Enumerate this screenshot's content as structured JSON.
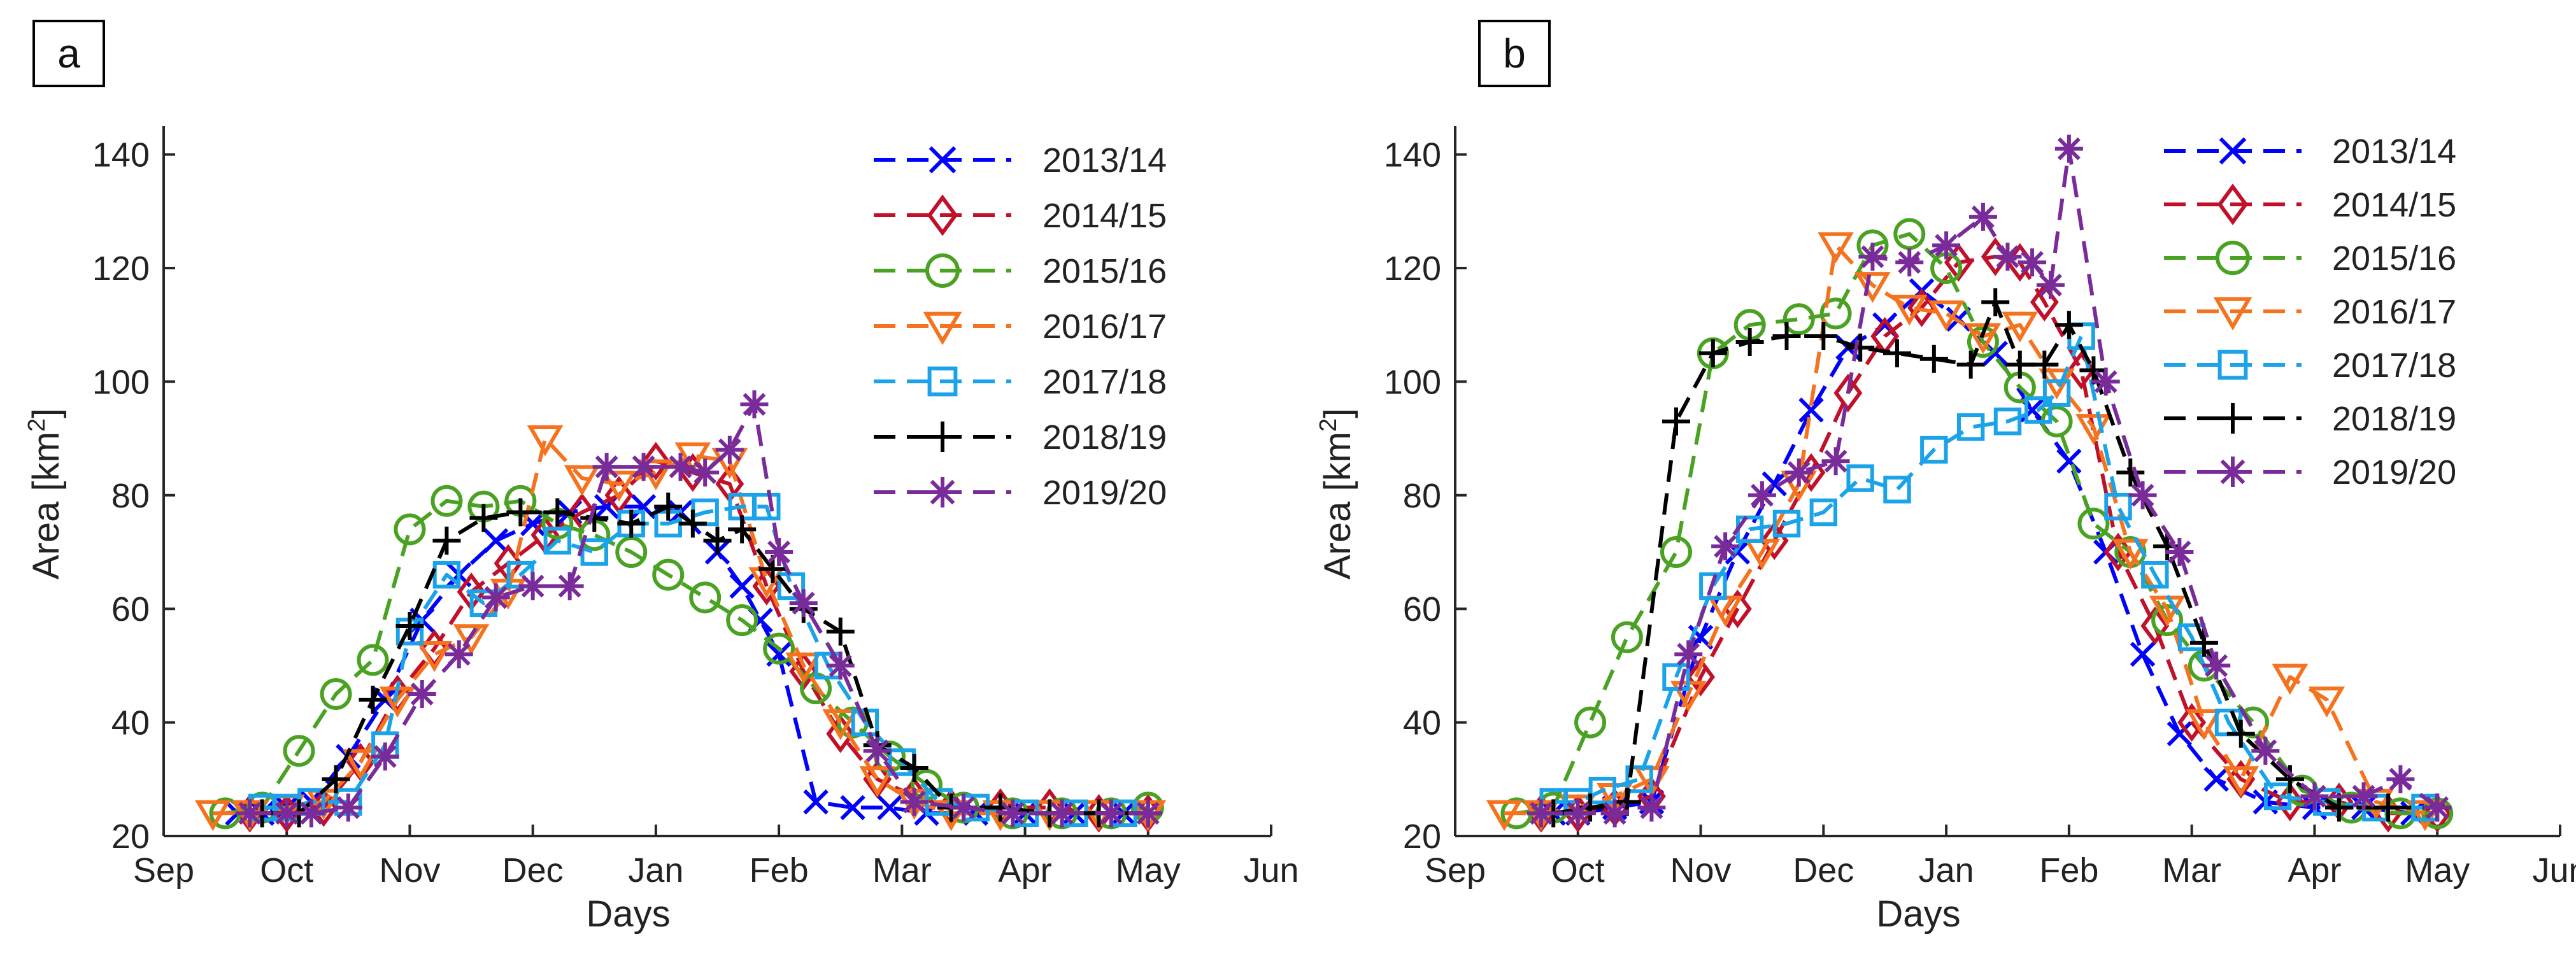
{
  "chart_data": [
    {
      "type": "line",
      "panel_label": "a",
      "xlabel": "Days",
      "ylabel": "Area [km",
      "ylabel_sup": "2",
      "ylabel_end": "]",
      "xlim": [
        0,
        9
      ],
      "ylim": [
        20,
        145
      ],
      "xticks": [
        0,
        1,
        2,
        3,
        4,
        5,
        6,
        7,
        8,
        9
      ],
      "xtick_labels": [
        "Sep",
        "Oct",
        "Nov",
        "Dec",
        "Jan",
        "Feb",
        "Mar",
        "Apr",
        "May",
        "Jun"
      ],
      "yticks": [
        20,
        40,
        60,
        80,
        100,
        120,
        140
      ],
      "legend_position": "top-right",
      "series": [
        {
          "name": "2013/14",
          "color": "#0000ff",
          "marker": "x",
          "x": [
            0.6,
            0.8,
            1.0,
            1.2,
            1.5,
            1.8,
            2.1,
            2.4,
            2.7,
            3.0,
            3.3,
            3.6,
            3.9,
            4.2,
            4.5,
            4.7,
            4.85,
            5.0,
            5.3,
            5.6,
            5.9,
            6.2,
            6.6,
            7.0,
            7.4,
            7.8
          ],
          "y": [
            24,
            24,
            25,
            26,
            34,
            44,
            58,
            66,
            72,
            75,
            77,
            78,
            78,
            77,
            70,
            64,
            58,
            52,
            26,
            25,
            25,
            24,
            24,
            24,
            24,
            24
          ]
        },
        {
          "name": "2014/15",
          "color": "#c0102a",
          "marker": "diamond",
          "x": [
            0.7,
            1.0,
            1.3,
            1.6,
            1.9,
            2.2,
            2.5,
            2.8,
            3.1,
            3.4,
            3.7,
            4.0,
            4.3,
            4.6,
            4.9,
            5.2,
            5.5,
            5.8,
            6.1,
            6.4,
            6.8,
            7.2,
            7.6,
            8.0
          ],
          "y": [
            24,
            24,
            25,
            33,
            45,
            53,
            63,
            68,
            73,
            77,
            80,
            86,
            84,
            82,
            64,
            49,
            38,
            30,
            27,
            25,
            25,
            25,
            24,
            24
          ]
        },
        {
          "name": "2015/16",
          "color": "#4aa222",
          "marker": "circle",
          "x": [
            0.5,
            0.8,
            1.1,
            1.4,
            1.7,
            2.0,
            2.3,
            2.6,
            2.9,
            3.2,
            3.5,
            3.8,
            4.1,
            4.4,
            4.7,
            5.0,
            5.3,
            5.6,
            5.9,
            6.2,
            6.5,
            6.9,
            7.3,
            7.7,
            8.0
          ],
          "y": [
            24,
            25,
            35,
            45,
            51,
            74,
            79,
            78,
            79,
            75,
            73,
            70,
            66,
            62,
            58,
            53,
            46,
            40,
            34,
            29,
            25,
            24,
            24,
            24,
            25
          ]
        },
        {
          "name": "2016/17",
          "color": "#f5731f",
          "marker": "triangle-down",
          "x": [
            0.4,
            0.7,
            1.0,
            1.3,
            1.6,
            1.9,
            2.2,
            2.5,
            2.8,
            3.1,
            3.4,
            3.7,
            4.0,
            4.3,
            4.6,
            4.9,
            5.2,
            5.5,
            5.8,
            6.1,
            6.4,
            6.8,
            7.2,
            7.6,
            8.0
          ],
          "y": [
            24,
            24,
            25,
            26,
            33,
            44,
            52,
            55,
            63,
            90,
            83,
            82,
            84,
            87,
            86,
            65,
            50,
            40,
            30,
            26,
            24,
            24,
            24,
            24,
            24
          ]
        },
        {
          "name": "2017/18",
          "color": "#1aa3e8",
          "marker": "square",
          "x": [
            0.8,
            1.0,
            1.2,
            1.5,
            1.8,
            2.0,
            2.3,
            2.6,
            2.9,
            3.2,
            3.5,
            3.8,
            4.1,
            4.4,
            4.7,
            4.9,
            5.1,
            5.4,
            5.7,
            6.0,
            6.3,
            6.6,
            7.0,
            7.4,
            7.8
          ],
          "y": [
            25,
            25,
            26,
            26,
            36,
            56,
            66,
            61,
            66,
            72,
            70,
            75,
            75,
            77,
            78,
            78,
            64,
            50,
            40,
            33,
            26,
            25,
            24,
            24,
            24
          ]
        },
        {
          "name": "2018/19",
          "color": "#000000",
          "marker": "plus",
          "x": [
            0.8,
            1.1,
            1.4,
            1.7,
            2.0,
            2.3,
            2.6,
            2.9,
            3.2,
            3.5,
            3.8,
            4.1,
            4.3,
            4.5,
            4.7,
            4.95,
            5.2,
            5.5,
            5.8,
            6.1,
            6.4,
            6.8,
            7.2,
            7.6,
            8.0
          ],
          "y": [
            24,
            24,
            30,
            44,
            57,
            72,
            76,
            77,
            77,
            76,
            75,
            78,
            75,
            72,
            74,
            67,
            60,
            56,
            36,
            32,
            25,
            25,
            24,
            24,
            24
          ]
        },
        {
          "name": "2019/20",
          "color": "#7a2b9a",
          "marker": "asterisk",
          "x": [
            0.7,
            1.0,
            1.2,
            1.5,
            1.8,
            2.1,
            2.4,
            2.7,
            3.0,
            3.3,
            3.6,
            3.9,
            4.2,
            4.4,
            4.6,
            4.8,
            5.0,
            5.2,
            5.5,
            5.8,
            6.1,
            6.5,
            6.9,
            7.3,
            7.7,
            8.0
          ],
          "y": [
            24,
            24,
            24,
            25,
            34,
            45,
            52,
            62,
            64,
            64,
            85,
            85,
            85,
            84,
            88,
            96,
            70,
            61,
            50,
            35,
            26,
            25,
            24,
            24,
            24,
            24
          ]
        }
      ]
    },
    {
      "type": "line",
      "panel_label": "b",
      "xlabel": "Days",
      "ylabel": "Area [km",
      "ylabel_sup": "2",
      "ylabel_end": "]",
      "xlim": [
        0,
        9
      ],
      "ylim": [
        20,
        145
      ],
      "xticks": [
        0,
        1,
        2,
        3,
        4,
        5,
        6,
        7,
        8,
        9
      ],
      "xtick_labels": [
        "Sep",
        "Oct",
        "Nov",
        "Dec",
        "Jan",
        "Feb",
        "Mar",
        "Apr",
        "May",
        "Jun"
      ],
      "yticks": [
        20,
        40,
        60,
        80,
        100,
        120,
        140
      ],
      "legend_position": "top-right",
      "series": [
        {
          "name": "2013/14",
          "color": "#0000ff",
          "marker": "x",
          "x": [
            0.8,
            1.0,
            1.3,
            1.6,
            2.0,
            2.3,
            2.6,
            2.9,
            3.2,
            3.5,
            3.8,
            4.1,
            4.4,
            4.7,
            5.0,
            5.3,
            5.6,
            5.9,
            6.2,
            6.6,
            7.0,
            7.4,
            7.8
          ],
          "y": [
            24,
            24,
            25,
            26,
            55,
            70,
            82,
            95,
            106,
            110,
            116,
            111,
            105,
            95,
            86,
            70,
            52,
            38,
            30,
            26,
            25,
            25,
            24
          ]
        },
        {
          "name": "2014/15",
          "color": "#c0102a",
          "marker": "diamond",
          "x": [
            0.7,
            1.0,
            1.3,
            1.6,
            2.0,
            2.3,
            2.6,
            2.9,
            3.2,
            3.5,
            3.8,
            4.1,
            4.4,
            4.6,
            4.8,
            5.1,
            5.4,
            5.7,
            6.0,
            6.4,
            6.8,
            7.2,
            7.6,
            8.0
          ],
          "y": [
            24,
            24,
            25,
            27,
            48,
            60,
            72,
            84,
            98,
            108,
            113,
            121,
            122,
            121,
            114,
            102,
            70,
            57,
            40,
            30,
            26,
            26,
            24,
            24
          ]
        },
        {
          "name": "2015/16",
          "color": "#4aa222",
          "marker": "circle",
          "x": [
            0.5,
            0.8,
            1.1,
            1.4,
            1.8,
            2.1,
            2.4,
            2.8,
            3.1,
            3.4,
            3.7,
            4.0,
            4.3,
            4.6,
            4.9,
            5.2,
            5.5,
            5.8,
            6.1,
            6.5,
            6.9,
            7.3,
            7.7,
            8.0
          ],
          "y": [
            24,
            25,
            40,
            55,
            70,
            105,
            110,
            111,
            112,
            124,
            126,
            120,
            107,
            99,
            93,
            75,
            70,
            58,
            50,
            40,
            28,
            25,
            24,
            24
          ]
        },
        {
          "name": "2016/17",
          "color": "#f5731f",
          "marker": "triangle-down",
          "x": [
            0.4,
            0.7,
            1.0,
            1.3,
            1.6,
            1.9,
            2.2,
            2.5,
            2.8,
            3.1,
            3.4,
            3.7,
            4.0,
            4.3,
            4.6,
            4.9,
            5.2,
            5.5,
            5.8,
            6.1,
            6.4,
            6.8,
            7.1,
            7.5,
            7.9
          ],
          "y": [
            24,
            24,
            25,
            27,
            30,
            45,
            60,
            70,
            82,
            124,
            117,
            113,
            112,
            108,
            110,
            100,
            92,
            70,
            60,
            40,
            30,
            48,
            44,
            26,
            24
          ]
        },
        {
          "name": "2017/18",
          "color": "#1aa3e8",
          "marker": "square",
          "x": [
            0.8,
            1.0,
            1.2,
            1.5,
            1.8,
            2.1,
            2.4,
            2.7,
            3.0,
            3.3,
            3.6,
            3.9,
            4.2,
            4.5,
            4.75,
            4.9,
            5.1,
            5.4,
            5.7,
            6.0,
            6.3,
            6.7,
            7.1,
            7.5,
            7.9
          ],
          "y": [
            26,
            26,
            28,
            30,
            48,
            64,
            74,
            75,
            77,
            83,
            81,
            88,
            92,
            93,
            95,
            98,
            108,
            78,
            66,
            55,
            40,
            27,
            26,
            25,
            25
          ]
        },
        {
          "name": "2018/19",
          "color": "#000000",
          "marker": "plus",
          "x": [
            0.8,
            1.1,
            1.4,
            1.8,
            2.1,
            2.4,
            2.7,
            3.0,
            3.3,
            3.6,
            3.9,
            4.2,
            4.4,
            4.6,
            4.8,
            5.0,
            5.2,
            5.5,
            5.8,
            6.1,
            6.4,
            6.8,
            7.2,
            7.6,
            8.0
          ],
          "y": [
            24,
            25,
            26,
            93,
            105,
            107,
            108,
            108,
            106,
            105,
            104,
            103,
            114,
            103,
            103,
            110,
            102,
            84,
            71,
            54,
            38,
            30,
            25,
            25,
            25
          ]
        },
        {
          "name": "2019/20",
          "color": "#7a2b9a",
          "marker": "asterisk",
          "x": [
            0.7,
            1.0,
            1.3,
            1.6,
            1.9,
            2.2,
            2.5,
            2.8,
            3.1,
            3.4,
            3.7,
            4.0,
            4.3,
            4.5,
            4.7,
            4.85,
            5.0,
            5.3,
            5.6,
            5.9,
            6.2,
            6.6,
            7.0,
            7.4,
            7.7,
            8.0
          ],
          "y": [
            24,
            24,
            24,
            25,
            52,
            71,
            80,
            84,
            86,
            122,
            121,
            124,
            129,
            122,
            121,
            117,
            141,
            100,
            80,
            70,
            50,
            35,
            27,
            27,
            30,
            25
          ]
        }
      ]
    }
  ]
}
